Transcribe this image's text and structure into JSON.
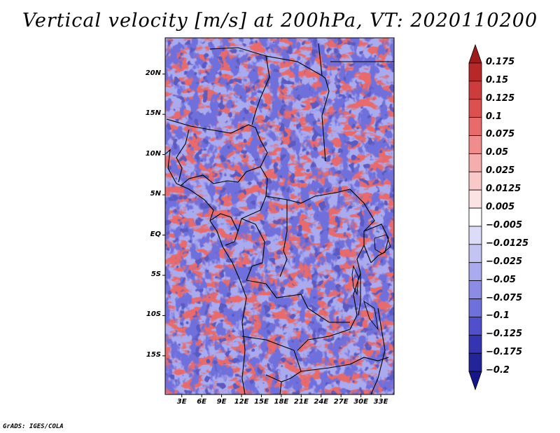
{
  "title": "Vertical velocity [m/s] at 200hPa, VT: 2020110200",
  "credit": "GrADS: IGES/COLA",
  "lat_labels": [
    "20N",
    "15N",
    "10N",
    "5N",
    "EQ",
    "5S",
    "10S",
    "15S"
  ],
  "lat_values": [
    20,
    15,
    10,
    5,
    0,
    -5,
    -10,
    -15
  ],
  "lon_labels": [
    "3E",
    "6E",
    "9E",
    "12E",
    "15E",
    "18E",
    "21E",
    "24E",
    "27E",
    "30E",
    "33E"
  ],
  "lon_values": [
    3,
    6,
    9,
    12,
    15,
    18,
    21,
    24,
    27,
    30,
    33
  ],
  "map_extent": {
    "lon_min": 0.5,
    "lon_max": 35,
    "lat_min": -19.8,
    "lat_max": 24.5
  },
  "colorbar": {
    "labels": [
      "0.175",
      "0.15",
      "0.125",
      "0.1",
      "0.075",
      "0.05",
      "0.025",
      "0.0125",
      "0.005",
      "−0.005",
      "−0.0125",
      "−0.025",
      "−0.05",
      "−0.075",
      "−0.1",
      "−0.125",
      "−0.175",
      "−0.2"
    ],
    "colors": [
      "#a01c1c",
      "#b82828",
      "#cc3c3c",
      "#dc5050",
      "#e86a6a",
      "#f08c8c",
      "#f6adad",
      "#f9c8c8",
      "#fce3e3",
      "#ffffff",
      "#dcdcf8",
      "#c4c4f2",
      "#aaaaee",
      "#8c8ce6",
      "#7070dc",
      "#5050cc",
      "#3535b4",
      "#24249a",
      "#16168a"
    ]
  },
  "field_colors": {
    "strong_red": "#e86a6a",
    "light_red": "#f6adad",
    "strong_blue": "#7070dc",
    "light_blue": "#aaaaee",
    "dark_blue": "#3535b4"
  }
}
